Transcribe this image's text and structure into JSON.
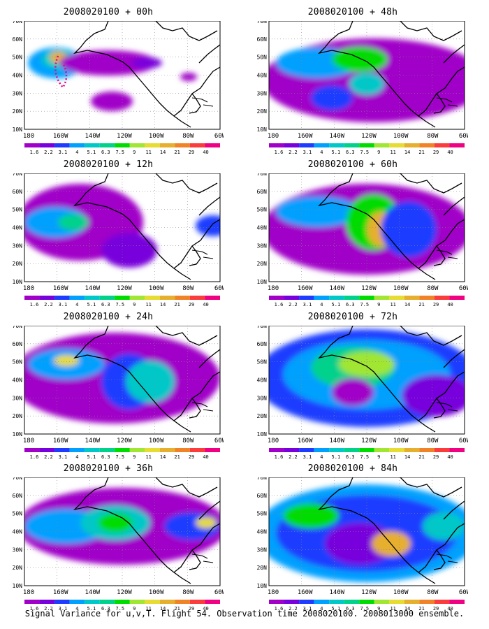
{
  "figure": {
    "caption": "Signal Variance for u,v,T. Flight 54. Observation time 2008020100. 2008013000 ensemble.",
    "lat_labels": [
      "70N",
      "60N",
      "50N",
      "40N",
      "30N",
      "20N",
      "10N"
    ],
    "lon_labels": [
      "180",
      "160W",
      "140W",
      "120W",
      "100W",
      "80W",
      "60W"
    ],
    "colorbar": {
      "labels": [
        "1.6",
        "2.2",
        "3.1",
        "4",
        "5.1",
        "6.3",
        "7.5",
        "9",
        "11",
        "14",
        "21",
        "29",
        "40"
      ],
      "colors": [
        "#a000c8",
        "#7800dc",
        "#1e3cff",
        "#00a0ff",
        "#00c8c8",
        "#00d28c",
        "#00dc00",
        "#a0e632",
        "#e6dc32",
        "#e6af2d",
        "#f08228",
        "#fa3c3c",
        "#f00082"
      ]
    },
    "panels": [
      {
        "title": "2008020100 + 00h"
      },
      {
        "title": "2008020100 + 48h"
      },
      {
        "title": "2008020100 + 12h"
      },
      {
        "title": "2008020100 + 60h"
      },
      {
        "title": "2008020100 + 24h"
      },
      {
        "title": "2008020100 + 72h"
      },
      {
        "title": "2008020100 + 36h"
      },
      {
        "title": "2008020100 + 84h"
      }
    ]
  }
}
